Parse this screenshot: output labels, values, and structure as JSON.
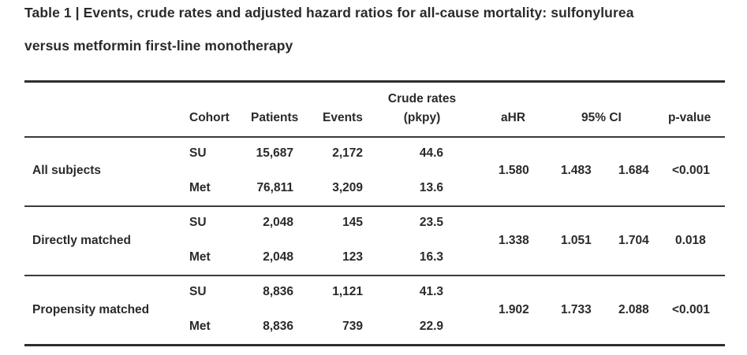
{
  "title": {
    "line1": "Table 1 | Events, crude rates and adjusted hazard ratios for all-cause mortality: sulfonylurea",
    "line2": "versus metformin first-line monotherapy"
  },
  "header": {
    "cohort": "Cohort",
    "patients": "Patients",
    "events": "Events",
    "crude_line1": "Crude rates",
    "crude_line2": "(pkpy)",
    "ahr": "aHR",
    "ci": "95% CI",
    "pvalue": "p-value"
  },
  "groups": [
    {
      "label": "All subjects",
      "rows": [
        {
          "cohort": "SU",
          "patients": "15,687",
          "events": "2,172",
          "crude": "44.6"
        },
        {
          "cohort": "Met",
          "patients": "76,811",
          "events": "3,209",
          "crude": "13.6"
        }
      ],
      "ahr": "1.580",
      "ci_low": "1.483",
      "ci_high": "1.684",
      "pvalue": "<0.001"
    },
    {
      "label": "Directly matched",
      "rows": [
        {
          "cohort": "SU",
          "patients": "2,048",
          "events": "145",
          "crude": "23.5"
        },
        {
          "cohort": "Met",
          "patients": "2,048",
          "events": "123",
          "crude": "16.3"
        }
      ],
      "ahr": "1.338",
      "ci_low": "1.051",
      "ci_high": "1.704",
      "pvalue": "0.018"
    },
    {
      "label": "Propensity matched",
      "rows": [
        {
          "cohort": "SU",
          "patients": "8,836",
          "events": "1,121",
          "crude": "41.3"
        },
        {
          "cohort": "Met",
          "patients": "8,836",
          "events": "739",
          "crude": "22.9"
        }
      ],
      "ahr": "1.902",
      "ci_low": "1.733",
      "ci_high": "2.088",
      "pvalue": "<0.001"
    }
  ]
}
